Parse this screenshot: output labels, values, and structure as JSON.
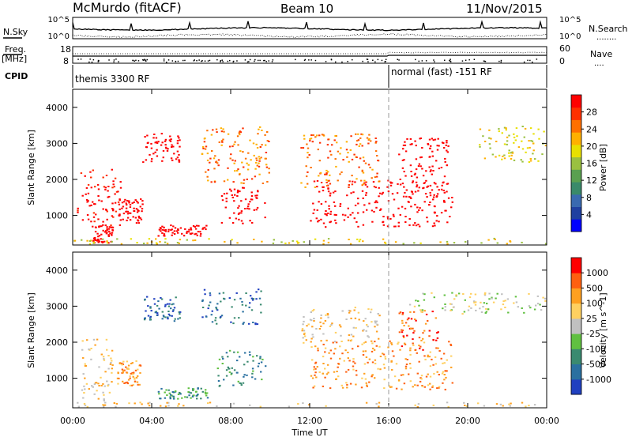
{
  "header": {
    "title": "McMurdo (fitACF)",
    "beam": "Beam 10",
    "date": "11/Nov/2015"
  },
  "top_panels": {
    "noise_left_label": "N.Sky",
    "noise_right_label": "N.Search",
    "noise_right_legend": "........",
    "noise_ticks_left": [
      "10^5",
      "10^0"
    ],
    "noise_ticks_right": [
      "10^5",
      "10^0"
    ],
    "freq_label": "Freq.",
    "freq_unit": "[MHz]",
    "freq_ticks": [
      "18",
      "8"
    ],
    "nave_label": "Nave",
    "nave_legend": "....",
    "nave_ticks": [
      "60",
      "0"
    ],
    "cpid_label": "CPID",
    "cpid_segments": [
      {
        "label": "themis 3300 RF",
        "start_hour": 0,
        "end_hour": 16
      },
      {
        "label": "normal (fast) -151 RF",
        "start_hour": 16,
        "end_hour": 24
      }
    ]
  },
  "chart_data": [
    {
      "type": "heatmap",
      "name": "power",
      "ylabel": "Slant Range [km]",
      "xlabel": "Time UT",
      "ylim": [
        180,
        4500
      ],
      "xlim": [
        0,
        24
      ],
      "yticks": [
        "1000",
        "2000",
        "3000",
        "4000"
      ],
      "xticks": [
        "00:00",
        "04:00",
        "08:00",
        "12:00",
        "16:00",
        "20:00",
        "00:00"
      ],
      "colorbar": {
        "label": "Power [dB]",
        "ticks": [
          "28",
          "24",
          "20",
          "16",
          "12",
          "8",
          "4"
        ],
        "colors": [
          "#0000ff",
          "#2040a0",
          "#3a6ab0",
          "#3a8a6a",
          "#5aa050",
          "#9ac040",
          "#e8e000",
          "#ffb000",
          "#ff7000",
          "#ff3000",
          "#ff0000"
        ]
      },
      "echo_regions": [
        {
          "t0": 0.2,
          "t1": 2.4,
          "r0": 700,
          "r1": 2300,
          "level": 10
        },
        {
          "t0": 1.0,
          "t1": 2.0,
          "r0": 250,
          "r1": 800,
          "level": 14
        },
        {
          "t0": 2.3,
          "t1": 3.5,
          "r0": 800,
          "r1": 1500,
          "level": 12
        },
        {
          "t0": 3.5,
          "t1": 5.5,
          "r0": 2500,
          "r1": 3300,
          "level": 16
        },
        {
          "t0": 4.3,
          "t1": 6.8,
          "r0": 450,
          "r1": 750,
          "level": 14
        },
        {
          "t0": 6.5,
          "t1": 10.0,
          "r0": 1900,
          "r1": 3500,
          "level": 8
        },
        {
          "t0": 7.5,
          "t1": 9.7,
          "r0": 800,
          "r1": 1800,
          "level": 18
        },
        {
          "t0": 12.0,
          "t1": 19.2,
          "r0": 700,
          "r1": 2000,
          "level": 18
        },
        {
          "t0": 11.5,
          "t1": 15.5,
          "r0": 1800,
          "r1": 3300,
          "level": 8
        },
        {
          "t0": 16.4,
          "t1": 19.0,
          "r0": 1500,
          "r1": 3200,
          "level": 14
        },
        {
          "t0": 20.5,
          "t1": 24.0,
          "r0": 2500,
          "r1": 3500,
          "level": 6
        },
        {
          "t0": 0.0,
          "t1": 24.0,
          "r0": 200,
          "r1": 380,
          "level": 6
        }
      ]
    },
    {
      "type": "heatmap",
      "name": "velocity",
      "ylabel": "Slant Range [km]",
      "xlabel": "Time UT",
      "ylim": [
        180,
        4500
      ],
      "xlim": [
        0,
        24
      ],
      "yticks": [
        "1000",
        "2000",
        "3000",
        "4000"
      ],
      "xticks": [
        "00:00",
        "04:00",
        "08:00",
        "12:00",
        "16:00",
        "20:00",
        "00:00"
      ],
      "colorbar": {
        "label": "Velocity [m s^-1]",
        "ticks": [
          "1000",
          "500",
          "100",
          "25",
          "-25",
          "-100",
          "-500",
          "-1000"
        ],
        "colors": [
          "#2040c0",
          "#2a70a0",
          "#3a8a70",
          "#60c040",
          "#c0c0c0",
          "#ffd060",
          "#ffa020",
          "#ff6010",
          "#ff0000"
        ]
      },
      "echo_regions": [
        {
          "t0": 0.3,
          "t1": 2.0,
          "r0": 400,
          "r1": 2100,
          "level": 5
        },
        {
          "t0": 2.2,
          "t1": 3.4,
          "r0": 800,
          "r1": 1500,
          "level": 6
        },
        {
          "t0": 3.5,
          "t1": 5.5,
          "r0": 2600,
          "r1": 3300,
          "level": 1
        },
        {
          "t0": 4.3,
          "t1": 6.8,
          "r0": 450,
          "r1": 750,
          "level": 2
        },
        {
          "t0": 6.5,
          "t1": 9.5,
          "r0": 2500,
          "r1": 3500,
          "level": 1
        },
        {
          "t0": 7.3,
          "t1": 9.8,
          "r0": 800,
          "r1": 1800,
          "level": 2
        },
        {
          "t0": 12.0,
          "t1": 19.2,
          "r0": 700,
          "r1": 2100,
          "level": 6
        },
        {
          "t0": 11.5,
          "t1": 15.5,
          "r0": 2000,
          "r1": 3000,
          "level": 5
        },
        {
          "t0": 16.5,
          "t1": 18.5,
          "r0": 1800,
          "r1": 2900,
          "level": 7
        },
        {
          "t0": 17.0,
          "t1": 24.0,
          "r0": 2800,
          "r1": 3400,
          "level": 4
        },
        {
          "t0": 0.0,
          "t1": 24.0,
          "r0": 200,
          "r1": 350,
          "level": 5
        }
      ]
    }
  ]
}
